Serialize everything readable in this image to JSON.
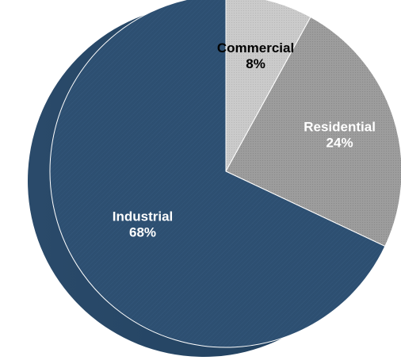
{
  "chart_data": {
    "type": "pie",
    "title": "",
    "start_angle_deg": 0,
    "direction": "clockwise",
    "slices": [
      {
        "name": "Commercial",
        "value": 8,
        "label": "8%",
        "color": "#c9c9c9",
        "text_color": "#000000"
      },
      {
        "name": "Residential",
        "value": 24,
        "label": "24%",
        "color": "#9c9c9c",
        "text_color": "#ffffff"
      },
      {
        "name": "Industrial",
        "value": 68,
        "label": "68%",
        "color": "#2f5173",
        "text_color": "#ffffff"
      }
    ],
    "legend": "none",
    "style": "3d-tilted"
  }
}
